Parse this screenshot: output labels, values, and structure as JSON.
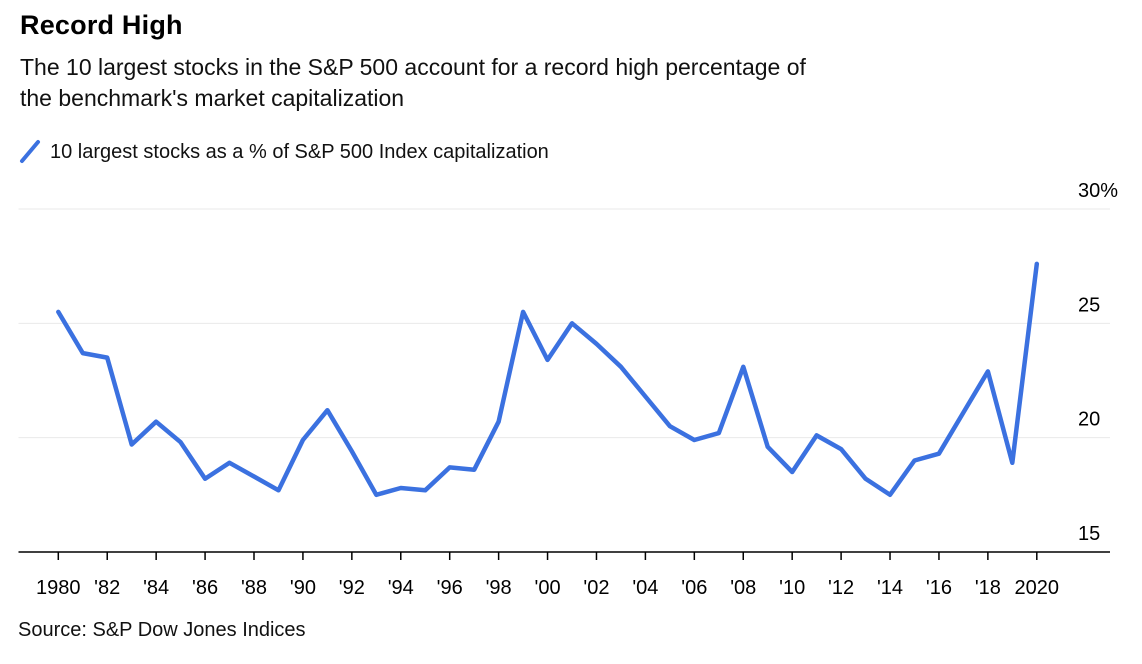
{
  "header": {
    "title": "Record High",
    "subtitle_line1": "The 10 largest stocks in the S&P 500 account for a record high percentage of",
    "subtitle_line2": "the benchmark's market capitalization"
  },
  "legend": {
    "label": "10 largest stocks as a % of S&P 500 Index capitalization"
  },
  "footer": {
    "source": "Source: S&P Dow Jones Indices"
  },
  "colors": {
    "line": "#3B71E0",
    "grid": "#E9E9E9",
    "axis": "#000000",
    "text": "#000000"
  },
  "chart_data": {
    "type": "line",
    "title": "Record High",
    "series": [
      {
        "name": "10 largest stocks as a % of S&P 500 Index capitalization",
        "values": [
          25.5,
          23.7,
          23.5,
          19.7,
          20.7,
          19.8,
          18.2,
          18.9,
          18.3,
          17.7,
          19.9,
          21.2,
          19.4,
          17.5,
          17.8,
          17.7,
          18.7,
          18.6,
          20.7,
          25.5,
          23.4,
          25.0,
          24.1,
          23.1,
          21.8,
          20.5,
          19.9,
          20.2,
          23.1,
          19.6,
          18.5,
          20.1,
          19.5,
          18.2,
          17.5,
          19.0,
          19.3,
          21.1,
          22.9,
          18.9,
          27.6
        ]
      }
    ],
    "x": [
      1980,
      1981,
      1982,
      1983,
      1984,
      1985,
      1986,
      1987,
      1988,
      1989,
      1990,
      1991,
      1992,
      1993,
      1994,
      1995,
      1996,
      1997,
      1998,
      1999,
      2000,
      2001,
      2002,
      2003,
      2004,
      2005,
      2006,
      2007,
      2008,
      2009,
      2010,
      2011,
      2012,
      2013,
      2014,
      2015,
      2016,
      2017,
      2018,
      2019,
      2020
    ],
    "xlabel": "",
    "ylabel": "",
    "ylim": [
      15,
      30
    ],
    "yticks": {
      "values": [
        15,
        20,
        25,
        30
      ],
      "labels": [
        "15",
        "20",
        "25",
        "30%"
      ]
    },
    "xticks": {
      "values": [
        1980,
        1982,
        1984,
        1986,
        1988,
        1990,
        1992,
        1994,
        1996,
        1998,
        2000,
        2002,
        2004,
        2006,
        2008,
        2010,
        2012,
        2014,
        2016,
        2018,
        2020
      ],
      "labels": [
        "1980",
        "'82",
        "'84",
        "'86",
        "'88",
        "'90",
        "'92",
        "'94",
        "'96",
        "'98",
        "'00",
        "'02",
        "'04",
        "'06",
        "'08",
        "'10",
        "'12",
        "'14",
        "'16",
        "'18",
        "2020"
      ]
    },
    "grid": "horizontal",
    "legend_position": "top-left",
    "y_axis_side": "right"
  }
}
